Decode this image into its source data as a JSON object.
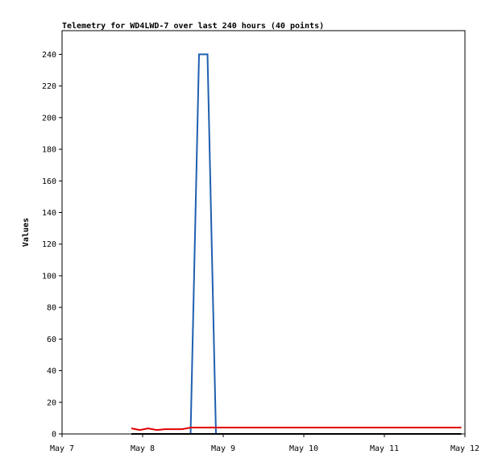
{
  "chart_data": {
    "type": "line",
    "title": "Telemetry for WD4LWD-7 over last 240 hours (40 points)",
    "y_label": "Values",
    "x": [
      0.86,
      0.965,
      1.07,
      1.175,
      1.28,
      1.385,
      1.49,
      1.595,
      1.7,
      1.805,
      1.91,
      2.015,
      2.12,
      2.225,
      2.33,
      2.435,
      2.54,
      2.645,
      2.75,
      2.855,
      2.96,
      3.065,
      3.17,
      3.275,
      3.38,
      3.485,
      3.59,
      3.695,
      3.8,
      3.905,
      4.01,
      4.115,
      4.22,
      4.325,
      4.43,
      4.535,
      4.64,
      4.745,
      4.85,
      4.955
    ],
    "series": [
      {
        "color": "#1f5fb0",
        "values": [
          0,
          0,
          0,
          0,
          0,
          0,
          0,
          0,
          240,
          240,
          0,
          0,
          0,
          0,
          0,
          0,
          0,
          0,
          0,
          0,
          0,
          0,
          0,
          0,
          0,
          0,
          0,
          0,
          0,
          0,
          0,
          0,
          0,
          0,
          0,
          0,
          0,
          0,
          0,
          0
        ]
      },
      {
        "color": "#000000",
        "values": [
          0,
          0,
          0,
          0,
          0,
          0,
          0,
          0,
          0,
          0,
          0,
          0,
          0,
          0,
          0,
          0,
          0,
          0,
          0,
          0,
          0,
          0,
          0,
          0,
          0,
          0,
          0,
          0,
          0,
          0,
          0,
          0,
          0,
          0,
          0,
          0,
          0,
          0,
          0,
          0
        ]
      },
      {
        "color": "#e00000",
        "values": [
          3.5,
          2.5,
          3.5,
          2.5,
          3,
          3,
          3,
          4,
          4,
          4,
          4,
          4,
          4,
          4,
          4,
          4,
          4,
          4,
          4,
          4,
          4,
          4,
          4,
          4,
          4,
          4,
          4,
          4,
          4,
          4,
          4,
          4,
          4,
          4,
          4,
          4,
          4,
          4,
          4,
          4
        ]
      }
    ],
    "xlim": [
      0,
      5
    ],
    "xticks": [
      {
        "value": 0,
        "label": "May 7"
      },
      {
        "value": 1,
        "label": "May 8"
      },
      {
        "value": 2,
        "label": "May 9"
      },
      {
        "value": 3,
        "label": "May 10"
      },
      {
        "value": 4,
        "label": "May 11"
      },
      {
        "value": 5,
        "label": "May 12"
      }
    ],
    "ylim": [
      0,
      255
    ],
    "yticks": [
      0,
      20,
      40,
      60,
      80,
      100,
      120,
      140,
      160,
      180,
      200,
      220,
      240
    ]
  }
}
